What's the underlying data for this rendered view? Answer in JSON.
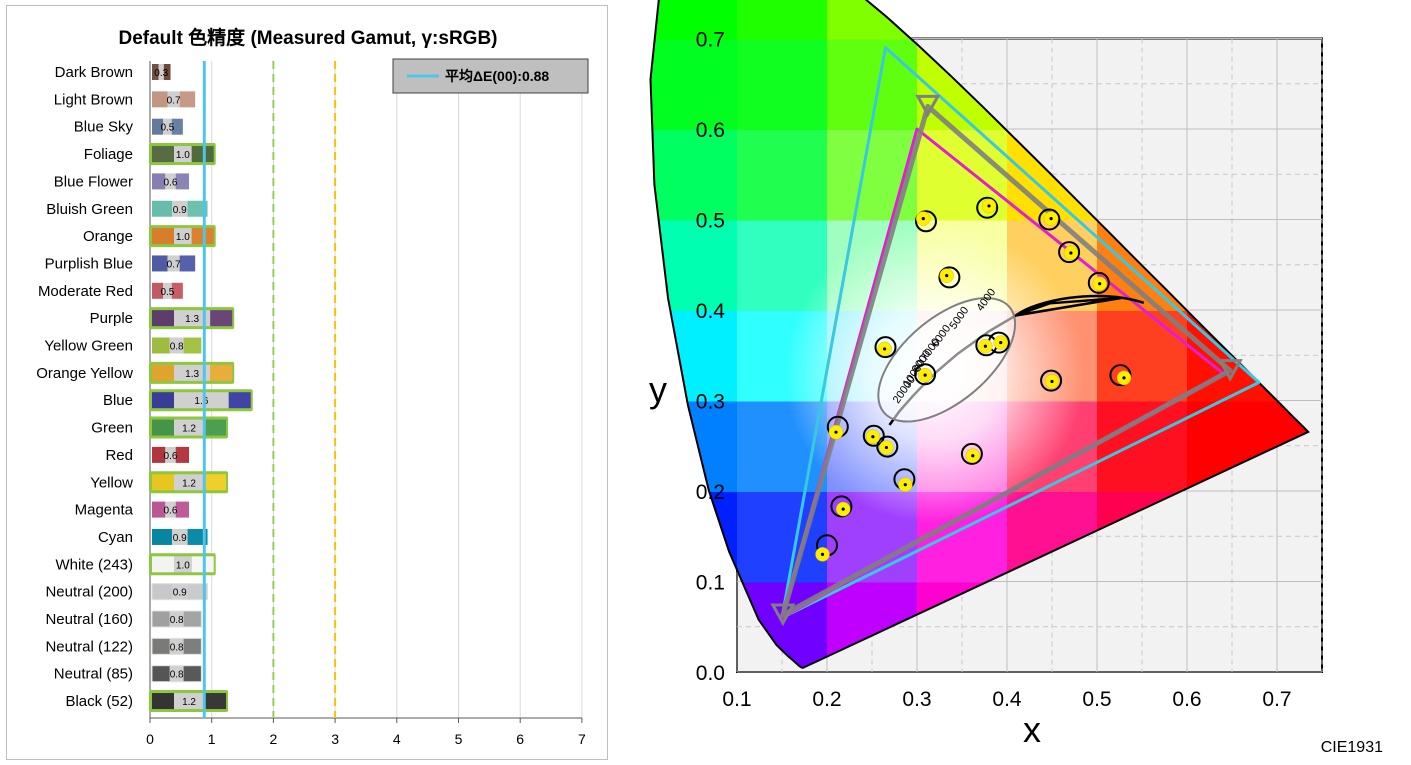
{
  "chart_data": [
    {
      "type": "bar",
      "title": "Default 色精度 (Measured Gamut, γ:sRGB)",
      "legend": {
        "label": "平均ΔE(00):0.88",
        "color": "#4fc6e8",
        "position": "top-right"
      },
      "xlim": [
        0,
        7
      ],
      "xticks": [
        "0",
        "1",
        "2",
        "3",
        "4",
        "5",
        "6",
        "7"
      ],
      "reference_lines": [
        {
          "value": 0.88,
          "color": "#4fc6e8",
          "style": "solid"
        },
        {
          "value": 2,
          "color": "#92d050",
          "style": "dashed"
        },
        {
          "value": 3,
          "color": "#ffc000",
          "style": "dashed"
        }
      ],
      "highlight_threshold": 1.0,
      "highlight_color": "#8dc63f",
      "categories": [
        "Dark Brown",
        "Light Brown",
        "Blue Sky",
        "Foliage",
        "Blue Flower",
        "Bluish Green",
        "Orange",
        "Purplish Blue",
        "Moderate Red",
        "Purple",
        "Yellow Green",
        "Orange Yellow",
        "Blue",
        "Green",
        "Red",
        "Yellow",
        "Magenta",
        "Cyan",
        "White (243)",
        "Neutral (200)",
        "Neutral (160)",
        "Neutral (122)",
        "Neutral (85)",
        "Black (52)"
      ],
      "values": [
        0.3,
        0.7,
        0.5,
        1.0,
        0.6,
        0.9,
        1.0,
        0.7,
        0.5,
        1.3,
        0.8,
        1.3,
        1.6,
        1.2,
        0.6,
        1.2,
        0.6,
        0.9,
        1.0,
        0.9,
        0.8,
        0.8,
        0.8,
        1.2
      ],
      "value_labels": [
        "0.3",
        "0.7",
        "0.5",
        "1.0",
        "0.6",
        "0.9",
        "1.0",
        "0.7",
        "0.5",
        "1.3",
        "0.8",
        "1.3",
        "1.6",
        "1.2",
        "0.6",
        "1.2",
        "0.6",
        "0.9",
        "1.0",
        "0.9",
        "0.8",
        "0.8",
        "0.8",
        "1.2"
      ],
      "colors_ref": [
        "#735244",
        "#c29682",
        "#627a9d",
        "#576c43",
        "#8580b1",
        "#67bdaa",
        "#d67e2c",
        "#505ba6",
        "#c15a63",
        "#5e3c6c",
        "#9dbc40",
        "#e0a32e",
        "#383d96",
        "#469449",
        "#af363c",
        "#e7c71f",
        "#bb5695",
        "#0885a1",
        "#f3f3f2",
        "#c8c8c8",
        "#a0a0a0",
        "#7a7a79",
        "#555555",
        "#343434"
      ],
      "colors_measured": [
        "#6b4a3c",
        "#c69a86",
        "#6680a6",
        "#4f6a3b",
        "#8a84b7",
        "#6cc2ae",
        "#da822f",
        "#5660ad",
        "#c65e67",
        "#6a4678",
        "#a3c346",
        "#e8ad3a",
        "#3f44a6",
        "#4c9e50",
        "#b43a40",
        "#f0cf2a",
        "#c05b9a",
        "#0a8ca8",
        "#f6f6f6",
        "#cbcbcb",
        "#a4a4a4",
        "#7e7e7e",
        "#595959",
        "#383838"
      ]
    },
    {
      "type": "scatter",
      "subtype": "CIE 1931 chromaticity diagram",
      "label": "CIE1931",
      "xlabel": "x",
      "ylabel": "y",
      "xlim": [
        0.1,
        0.75
      ],
      "ylim": [
        0.0,
        0.7
      ],
      "xticks": [
        "0.1",
        "0.2",
        "0.3",
        "0.4",
        "0.5",
        "0.6",
        "0.7"
      ],
      "yticks": [
        "0.0",
        "0.1",
        "0.2",
        "0.3",
        "0.4",
        "0.5",
        "0.6",
        "0.7"
      ],
      "grid": true,
      "gamuts": [
        {
          "color": "#38c8e0",
          "points": [
            [
              0.265,
              0.69
            ],
            [
              0.68,
              0.32
            ],
            [
              0.15,
              0.06
            ]
          ]
        },
        {
          "color": "#e020d0",
          "points": [
            [
              0.3,
              0.6
            ],
            [
              0.64,
              0.33
            ],
            [
              0.15,
              0.06
            ]
          ]
        },
        {
          "color": "#808080",
          "points": [
            [
              0.312,
              0.625
            ],
            [
              0.648,
              0.333
            ],
            [
              0.151,
              0.063
            ]
          ]
        }
      ],
      "planckian_locus": [
        [
          0.5267,
          0.4133
        ],
        [
          0.4476,
          0.4074
        ],
        [
          0.4109,
          0.3946
        ],
        [
          0.3805,
          0.3768
        ],
        [
          0.3451,
          0.3516
        ],
        [
          0.322,
          0.3318
        ],
        [
          0.3063,
          0.3163
        ],
        [
          0.2952,
          0.3048
        ],
        [
          0.2807,
          0.2884
        ],
        [
          0.2694,
          0.2729
        ]
      ],
      "cct_labels": [
        "4000",
        "5000",
        "6000",
        "7000",
        "8000",
        "10000",
        "20000"
      ],
      "targets": [
        [
          0.2,
          0.14
        ],
        [
          0.216,
          0.183
        ],
        [
          0.212,
          0.271
        ],
        [
          0.252,
          0.261
        ],
        [
          0.267,
          0.249
        ],
        [
          0.286,
          0.213
        ],
        [
          0.265,
          0.359
        ],
        [
          0.309,
          0.329
        ],
        [
          0.31,
          0.498
        ],
        [
          0.336,
          0.436
        ],
        [
          0.378,
          0.513
        ],
        [
          0.377,
          0.361
        ],
        [
          0.391,
          0.364
        ],
        [
          0.447,
          0.5
        ],
        [
          0.469,
          0.464
        ],
        [
          0.502,
          0.43
        ],
        [
          0.449,
          0.322
        ],
        [
          0.526,
          0.328
        ],
        [
          0.361,
          0.241
        ]
      ],
      "measured": [
        [
          0.195,
          0.13
        ],
        [
          0.218,
          0.18
        ],
        [
          0.21,
          0.265
        ],
        [
          0.251,
          0.26
        ],
        [
          0.266,
          0.248
        ],
        [
          0.287,
          0.207
        ],
        [
          0.264,
          0.357
        ],
        [
          0.309,
          0.328
        ],
        [
          0.307,
          0.501
        ],
        [
          0.333,
          0.438
        ],
        [
          0.38,
          0.515
        ],
        [
          0.376,
          0.36
        ],
        [
          0.393,
          0.364
        ],
        [
          0.449,
          0.501
        ],
        [
          0.471,
          0.463
        ],
        [
          0.503,
          0.429
        ],
        [
          0.45,
          0.321
        ],
        [
          0.53,
          0.325
        ],
        [
          0.362,
          0.239
        ]
      ]
    }
  ]
}
